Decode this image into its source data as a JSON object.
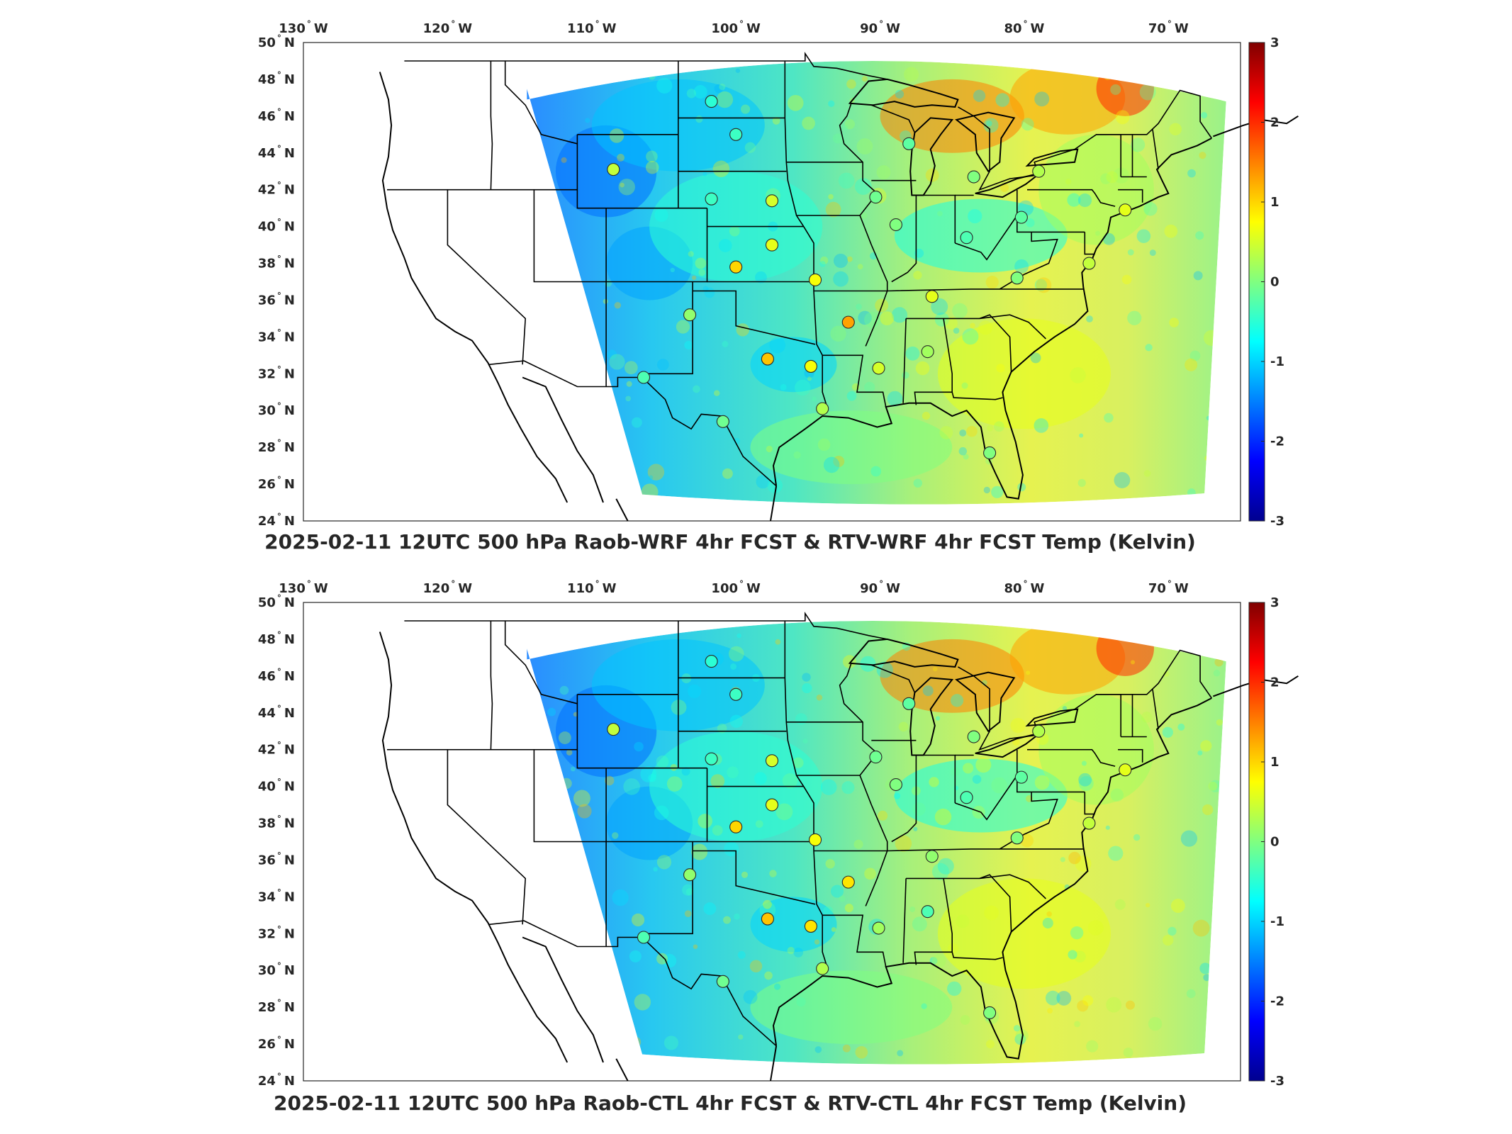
{
  "axes": {
    "lon_labels": [
      "130 W",
      "120 W",
      "110 W",
      "100 W",
      "90 W",
      "80 W",
      "70 W"
    ],
    "lat_labels": [
      "24 N",
      "26 N",
      "28 N",
      "30 N",
      "32 N",
      "34 N",
      "36 N",
      "38 N",
      "40 N",
      "42 N",
      "44 N",
      "46 N",
      "48 N",
      "50 N"
    ],
    "lon_range": [
      -130,
      -65
    ],
    "lat_range": [
      24,
      50
    ]
  },
  "colorbar": {
    "ticks": [
      "-3",
      "-2",
      "-1",
      "0",
      "1",
      "2",
      "3"
    ],
    "range": [
      -3,
      3
    ],
    "colormap": "jet",
    "colors": [
      "#00008f",
      "#0000ff",
      "#0080ff",
      "#00ffff",
      "#80ff80",
      "#ffff00",
      "#ff8000",
      "#ff0000",
      "#800000"
    ]
  },
  "panels": [
    {
      "title": "2025-02-11 12UTC 500 hPa Raob-WRF 4hr FCST & RTV-WRF 4hr FCST Temp (Kelvin)",
      "stations": [
        {
          "lon": -101.7,
          "lat": 46.8,
          "value": -0.5
        },
        {
          "lon": -100.0,
          "lat": 45.0,
          "value": -0.4
        },
        {
          "lon": -108.5,
          "lat": 43.1,
          "value": 0.4
        },
        {
          "lon": -101.7,
          "lat": 41.5,
          "value": -0.4
        },
        {
          "lon": -97.5,
          "lat": 41.4,
          "value": 0.5
        },
        {
          "lon": -88.0,
          "lat": 44.5,
          "value": -0.2
        },
        {
          "lon": -90.3,
          "lat": 41.6,
          "value": -0.1
        },
        {
          "lon": -83.5,
          "lat": 42.7,
          "value": 0.0
        },
        {
          "lon": -79.0,
          "lat": 43.0,
          "value": 0.3
        },
        {
          "lon": -80.2,
          "lat": 40.5,
          "value": -0.2
        },
        {
          "lon": -88.9,
          "lat": 40.1,
          "value": 0.0
        },
        {
          "lon": -84.0,
          "lat": 39.4,
          "value": -0.3
        },
        {
          "lon": -97.5,
          "lat": 39.0,
          "value": 0.6
        },
        {
          "lon": -100.0,
          "lat": 37.8,
          "value": 1.0
        },
        {
          "lon": -94.5,
          "lat": 37.1,
          "value": 0.7
        },
        {
          "lon": -86.4,
          "lat": 36.2,
          "value": 0.6
        },
        {
          "lon": -80.5,
          "lat": 37.2,
          "value": 0.0
        },
        {
          "lon": -75.5,
          "lat": 38.0,
          "value": 0.4
        },
        {
          "lon": -103.2,
          "lat": 35.2,
          "value": 0.1
        },
        {
          "lon": -92.2,
          "lat": 34.8,
          "value": 1.3
        },
        {
          "lon": -97.8,
          "lat": 32.8,
          "value": 1.1
        },
        {
          "lon": -94.8,
          "lat": 32.4,
          "value": 0.7
        },
        {
          "lon": -90.1,
          "lat": 32.3,
          "value": 0.5
        },
        {
          "lon": -86.7,
          "lat": 33.2,
          "value": 0.2
        },
        {
          "lon": -106.4,
          "lat": 31.8,
          "value": -0.3
        },
        {
          "lon": -100.9,
          "lat": 29.4,
          "value": -0.1
        },
        {
          "lon": -94.0,
          "lat": 30.1,
          "value": 0.3
        },
        {
          "lon": -82.4,
          "lat": 27.7,
          "value": 0.0
        },
        {
          "lon": -73.0,
          "lat": 40.9,
          "value": 0.6
        }
      ]
    },
    {
      "title": "2025-02-11 12UTC 500 hPa Raob-CTL 4hr FCST & RTV-CTL 4hr FCST Temp (Kelvin)",
      "stations": [
        {
          "lon": -101.7,
          "lat": 46.8,
          "value": -0.5
        },
        {
          "lon": -100.0,
          "lat": 45.0,
          "value": -0.4
        },
        {
          "lon": -108.5,
          "lat": 43.1,
          "value": 0.4
        },
        {
          "lon": -101.7,
          "lat": 41.5,
          "value": -0.4
        },
        {
          "lon": -97.5,
          "lat": 41.4,
          "value": 0.5
        },
        {
          "lon": -88.0,
          "lat": 44.5,
          "value": -0.2
        },
        {
          "lon": -90.3,
          "lat": 41.6,
          "value": -0.1
        },
        {
          "lon": -83.5,
          "lat": 42.7,
          "value": 0.0
        },
        {
          "lon": -79.0,
          "lat": 43.0,
          "value": 0.3
        },
        {
          "lon": -80.2,
          "lat": 40.5,
          "value": -0.2
        },
        {
          "lon": -88.9,
          "lat": 40.1,
          "value": 0.0
        },
        {
          "lon": -84.0,
          "lat": 39.4,
          "value": -0.3
        },
        {
          "lon": -97.5,
          "lat": 39.0,
          "value": 0.6
        },
        {
          "lon": -100.0,
          "lat": 37.8,
          "value": 1.0
        },
        {
          "lon": -94.5,
          "lat": 37.1,
          "value": 0.7
        },
        {
          "lon": -86.4,
          "lat": 36.2,
          "value": 0.1
        },
        {
          "lon": -80.5,
          "lat": 37.2,
          "value": 0.0
        },
        {
          "lon": -75.5,
          "lat": 38.0,
          "value": 0.4
        },
        {
          "lon": -103.2,
          "lat": 35.2,
          "value": 0.1
        },
        {
          "lon": -92.2,
          "lat": 34.8,
          "value": 0.9
        },
        {
          "lon": -97.8,
          "lat": 32.8,
          "value": 1.1
        },
        {
          "lon": -94.8,
          "lat": 32.4,
          "value": 0.9
        },
        {
          "lon": -90.1,
          "lat": 32.3,
          "value": 0.2
        },
        {
          "lon": -86.7,
          "lat": 33.2,
          "value": -0.3
        },
        {
          "lon": -106.4,
          "lat": 31.8,
          "value": -0.3
        },
        {
          "lon": -100.9,
          "lat": 29.4,
          "value": -0.1
        },
        {
          "lon": -94.0,
          "lat": 30.1,
          "value": 0.3
        },
        {
          "lon": -82.4,
          "lat": 27.7,
          "value": 0.0
        },
        {
          "lon": -73.0,
          "lat": 40.9,
          "value": 0.6
        }
      ]
    }
  ]
}
